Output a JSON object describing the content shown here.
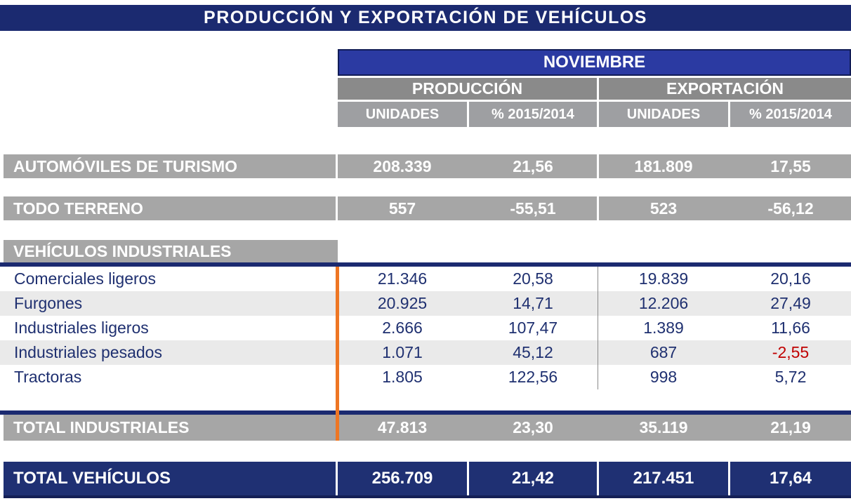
{
  "title": "PRODUCCIÓN Y EXPORTACIÓN DE VEHÍCULOS",
  "table": {
    "month_header": "NOVIEMBRE",
    "group_headers": [
      "PRODUCCIÓN",
      "EXPORTACIÓN"
    ],
    "column_headers": [
      "UNIDADES",
      "% 2015/2014",
      "UNIDADES",
      "% 2015/2014"
    ],
    "rows": [
      {
        "label": "AUTOMÓVILES DE TURISMO",
        "values": [
          "208.339",
          "21,56",
          "181.809",
          "17,55"
        ]
      },
      {
        "label": "TODO TERRENO",
        "values": [
          "557",
          "-55,51",
          "523",
          "-56,12"
        ]
      },
      {
        "label": "VEHÍCULOS INDUSTRIALES",
        "values": []
      },
      {
        "label": "Comerciales ligeros",
        "values": [
          "21.346",
          "20,58",
          "19.839",
          "20,16"
        ]
      },
      {
        "label": "Furgones",
        "values": [
          "20.925",
          "14,71",
          "12.206",
          "27,49"
        ]
      },
      {
        "label": "Industriales ligeros",
        "values": [
          "2.666",
          "107,47",
          "1.389",
          "11,66"
        ]
      },
      {
        "label": "Industriales pesados",
        "values": [
          "1.071",
          "45,12",
          "687",
          "-2,55"
        ]
      },
      {
        "label": "Tractoras",
        "values": [
          "1.805",
          "122,56",
          "998",
          "5,72"
        ]
      },
      {
        "label": "TOTAL INDUSTRIALES",
        "values": [
          "47.813",
          "23,30",
          "35.119",
          "21,19"
        ]
      },
      {
        "label": "TOTAL VEHÍCULOS",
        "values": [
          "256.709",
          "21,42",
          "217.451",
          "17,64"
        ]
      }
    ]
  },
  "colors": {
    "title_navy": "#1b2a70",
    "month_blue": "#2b3aa2",
    "group_gray": "#8a8a8a",
    "colhead_gray": "#9e9fa2",
    "row_gray": "#a6a6a6",
    "alt_row_gray": "#eaeaea",
    "detail_navy_text": "#1f3070",
    "negative_red": "#c00000",
    "total_navy": "#1f3073",
    "orange_accent": "#ee7623"
  },
  "chart_data": {
    "type": "table",
    "title": "PRODUCCIÓN Y EXPORTACIÓN DE VEHÍCULOS",
    "period": "NOVIEMBRE",
    "column_groups": [
      "PRODUCCIÓN",
      "EXPORTACIÓN"
    ],
    "columns": [
      "PRODUCCIÓN UNIDADES",
      "PRODUCCIÓN % 2015/2014",
      "EXPORTACIÓN UNIDADES",
      "EXPORTACIÓN % 2015/2014"
    ],
    "rows": [
      {
        "category": "AUTOMÓVILES DE TURISMO",
        "produccion_unidades": 208339,
        "produccion_pct": 21.56,
        "exportacion_unidades": 181809,
        "exportacion_pct": 17.55
      },
      {
        "category": "TODO TERRENO",
        "produccion_unidades": 557,
        "produccion_pct": -55.51,
        "exportacion_unidades": 523,
        "exportacion_pct": -56.12
      },
      {
        "category": "Comerciales ligeros",
        "produccion_unidades": 21346,
        "produccion_pct": 20.58,
        "exportacion_unidades": 19839,
        "exportacion_pct": 20.16
      },
      {
        "category": "Furgones",
        "produccion_unidades": 20925,
        "produccion_pct": 14.71,
        "exportacion_unidades": 12206,
        "exportacion_pct": 27.49
      },
      {
        "category": "Industriales ligeros",
        "produccion_unidades": 2666,
        "produccion_pct": 107.47,
        "exportacion_unidades": 1389,
        "exportacion_pct": 11.66
      },
      {
        "category": "Industriales pesados",
        "produccion_unidades": 1071,
        "produccion_pct": 45.12,
        "exportacion_unidades": 687,
        "exportacion_pct": -2.55
      },
      {
        "category": "Tractoras",
        "produccion_unidades": 1805,
        "produccion_pct": 122.56,
        "exportacion_unidades": 998,
        "exportacion_pct": 5.72
      },
      {
        "category": "TOTAL INDUSTRIALES",
        "produccion_unidades": 47813,
        "produccion_pct": 23.3,
        "exportacion_unidades": 35119,
        "exportacion_pct": 21.19
      },
      {
        "category": "TOTAL VEHÍCULOS",
        "produccion_unidades": 256709,
        "produccion_pct": 21.42,
        "exportacion_unidades": 217451,
        "exportacion_pct": 17.64
      }
    ]
  }
}
